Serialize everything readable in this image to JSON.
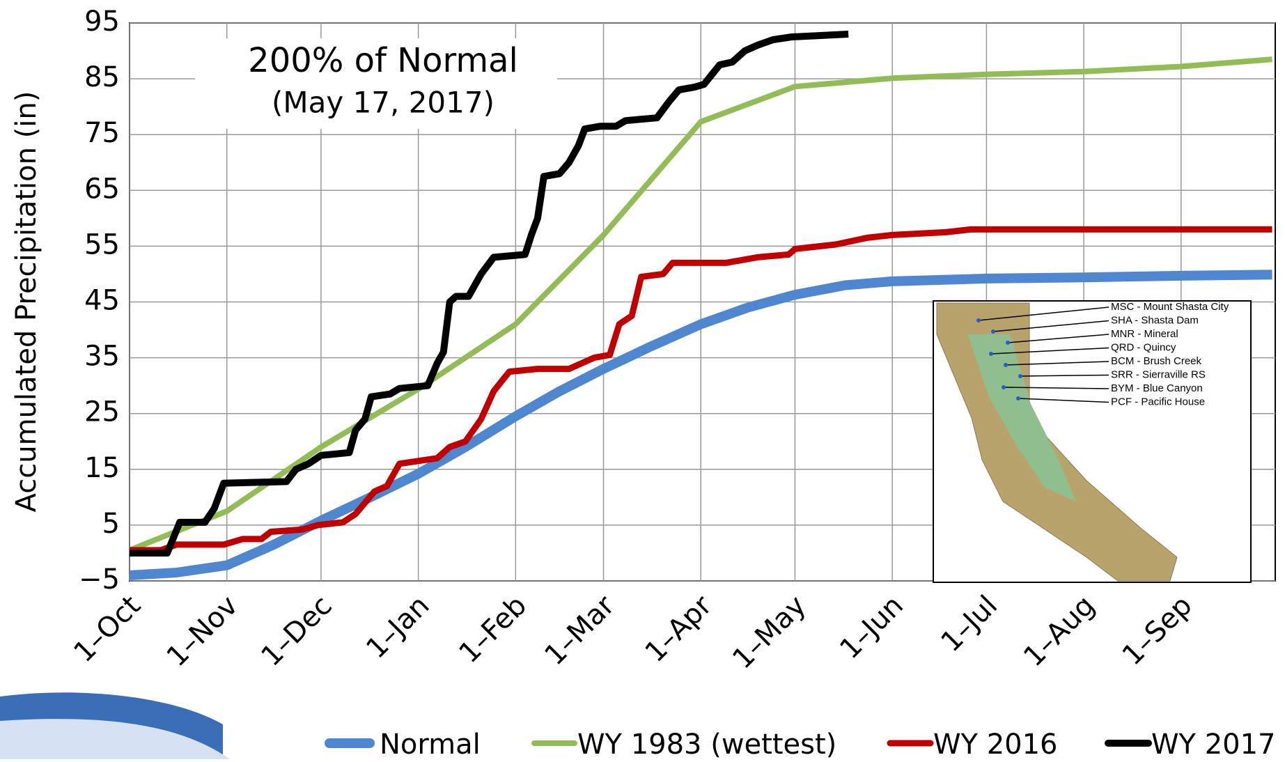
{
  "chart_data": {
    "type": "line",
    "y_label": "Accumulated Precipitation (in)",
    "annotation": "200% of Normal",
    "annotation_date": "(May 17, 2017)",
    "xlim": [
      0,
      365
    ],
    "xticks": [
      {
        "value": 0,
        "label": "1–Oct"
      },
      {
        "value": 31,
        "label": "1–Nov"
      },
      {
        "value": 61,
        "label": "1–Dec"
      },
      {
        "value": 92,
        "label": "1–Jan"
      },
      {
        "value": 123,
        "label": "1–Feb"
      },
      {
        "value": 151,
        "label": "1–Mar"
      },
      {
        "value": 182,
        "label": "1–Apr"
      },
      {
        "value": 212,
        "label": "1–May"
      },
      {
        "value": 243,
        "label": "1–Jun"
      },
      {
        "value": 273,
        "label": "1–Jul"
      },
      {
        "value": 304,
        "label": "1–Aug"
      },
      {
        "value": 335,
        "label": "1–Sep"
      }
    ],
    "ylim": [
      -5,
      95
    ],
    "yticks": [
      {
        "value": -5,
        "label": "−5"
      },
      5,
      15,
      25,
      35,
      45,
      55,
      65,
      75,
      85,
      95
    ],
    "grid": true,
    "legend": "bottom",
    "series": [
      {
        "name": "Normal",
        "color": "#4f86d0",
        "width": 14,
        "x": [
          0,
          15,
          31,
          46,
          61,
          76,
          92,
          107,
          123,
          137,
          151,
          166,
          182,
          197,
          212,
          228,
          243,
          273,
          304,
          335,
          364
        ],
        "values": [
          -4,
          -3.5,
          -2.2,
          1.5,
          5.8,
          9.8,
          14.2,
          19,
          24.5,
          29,
          33,
          37,
          41,
          44,
          46.3,
          48,
          48.7,
          49.2,
          49.4,
          49.7,
          49.9
        ]
      },
      {
        "name": "WY 1983 (wettest)",
        "color": "#92bc55",
        "width": 8,
        "x": [
          0,
          31,
          61,
          92,
          123,
          151,
          182,
          212,
          243,
          273,
          304,
          335,
          364
        ],
        "values": [
          0.5,
          7.5,
          19,
          29.4,
          41,
          57,
          77.3,
          83.6,
          85.1,
          85.8,
          86.3,
          87.2,
          88.5
        ]
      },
      {
        "name": "WY 2016",
        "color": "#c00000",
        "width": 9,
        "x": [
          0,
          10,
          15,
          30,
          36,
          42,
          45,
          55,
          60,
          68,
          72,
          75,
          78,
          82,
          86,
          92,
          98,
          102,
          107,
          112,
          116,
          121,
          130,
          140,
          148,
          153,
          156,
          160,
          163,
          170,
          173,
          190,
          200,
          210,
          212,
          225,
          235,
          243,
          260,
          268,
          364
        ],
        "values": [
          0.5,
          0.5,
          1.5,
          1.5,
          2.5,
          2.5,
          3.8,
          4.2,
          5,
          5.5,
          7,
          9,
          11,
          12,
          16,
          16.5,
          17,
          19,
          20,
          24,
          29,
          32.5,
          33,
          33,
          35,
          35.5,
          41,
          42.5,
          49.5,
          50,
          52,
          52,
          53,
          53.5,
          54.5,
          55.3,
          56.5,
          57,
          57.5,
          58,
          58
        ]
      },
      {
        "name": "WY 2017",
        "color": "#000000",
        "width": 10,
        "x": [
          0,
          12,
          16,
          24,
          27,
          30,
          50,
          53,
          57,
          61,
          70,
          72,
          75,
          77,
          83,
          86,
          95,
          98,
          100,
          102,
          104,
          108,
          112,
          116,
          126,
          128,
          130,
          132,
          137,
          140,
          143,
          145,
          150,
          155,
          158,
          168,
          172,
          175,
          180,
          183,
          188,
          192,
          196,
          200,
          205,
          211,
          229
        ],
        "values": [
          0,
          0,
          5.5,
          5.5,
          8,
          12.5,
          12.8,
          15,
          16,
          17.5,
          18,
          22,
          24,
          28,
          28.5,
          29.5,
          30,
          34,
          36,
          45,
          46,
          46,
          50,
          53,
          53.5,
          57,
          60,
          67.5,
          68,
          70,
          73,
          76,
          76.5,
          76.5,
          77.5,
          78,
          81,
          83,
          83.5,
          84,
          87.5,
          88,
          90,
          91,
          92,
          92.5,
          93
        ]
      }
    ],
    "inset_labels": [
      "MSC - Mount Shasta City",
      "SHA - Shasta Dam",
      "MNR - Mineral",
      "QRD - Quincy",
      "BCM - Brush Creek",
      "SRR - Sierraville RS",
      "BYM - Blue Canyon",
      "PCF - Pacific House"
    ]
  }
}
